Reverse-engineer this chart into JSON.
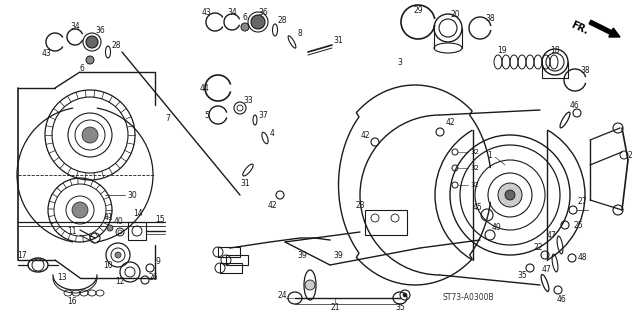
{
  "bg_color": "#ffffff",
  "diagram_color": "#1a1a1a",
  "watermark": "ST73-A0300B",
  "fig_width": 6.35,
  "fig_height": 3.2,
  "dpi": 100
}
